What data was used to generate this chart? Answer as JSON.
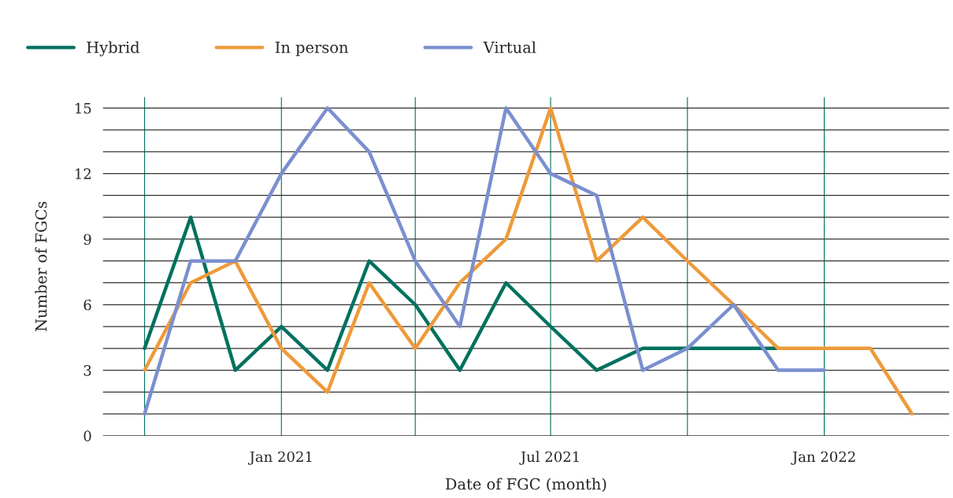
{
  "chart_data": {
    "type": "line",
    "xlabel": "Date of FGC (month)",
    "ylabel": "Number of FGCs",
    "x": [
      "2020-10",
      "2020-11",
      "2020-12",
      "2021-01",
      "2021-02",
      "2021-03",
      "2021-04",
      "2021-05",
      "2021-06",
      "2021-07",
      "2021-08",
      "2021-09",
      "2021-10",
      "2021-11",
      "2021-12",
      "2022-01",
      "2022-02",
      "2022-03"
    ],
    "series": [
      {
        "name": "Hybrid",
        "color": "#00715f",
        "values": [
          4,
          10,
          3,
          5,
          3,
          8,
          6,
          3,
          7,
          5,
          3,
          4,
          4,
          4,
          4,
          null,
          null,
          null
        ]
      },
      {
        "name": "In person",
        "color": "#ee9a3a",
        "values": [
          3,
          7,
          8,
          4,
          2,
          7,
          4,
          7,
          9,
          15,
          8,
          10,
          8,
          6,
          4,
          4,
          4,
          1
        ]
      },
      {
        "name": "Virtual",
        "color": "#7b8fcf",
        "values": [
          1,
          8,
          8,
          12,
          15,
          13,
          8,
          5,
          15,
          12,
          11,
          3,
          4,
          6,
          3,
          3,
          null,
          null
        ]
      }
    ],
    "xlim": [
      "2020-09-03",
      "2022-03-26"
    ],
    "xticks": [
      {
        "value": "2020-10",
        "label": null
      },
      {
        "value": "2021-01",
        "label": "Jan 2021"
      },
      {
        "value": "2021-04",
        "label": null
      },
      {
        "value": "2021-07",
        "label": "Jul 2021"
      },
      {
        "value": "2021-10",
        "label": null
      },
      {
        "value": "2022-01",
        "label": "Jan 2022"
      }
    ],
    "ylim": [
      0,
      15.5
    ],
    "yticks": [
      0,
      {
        "value": 1,
        "label": null
      },
      {
        "value": 2,
        "label": null
      },
      3,
      {
        "value": 4,
        "label": null
      },
      {
        "value": 5,
        "label": null
      },
      6,
      {
        "value": 7,
        "label": null
      },
      {
        "value": 8,
        "label": null
      },
      9,
      {
        "value": 10,
        "label": null
      },
      {
        "value": 11,
        "label": null
      },
      12,
      {
        "value": 13,
        "label": null
      },
      {
        "value": 14,
        "label": null
      },
      15
    ],
    "grid": true,
    "legend": "top left",
    "marker": "none",
    "line_style": "solid"
  }
}
